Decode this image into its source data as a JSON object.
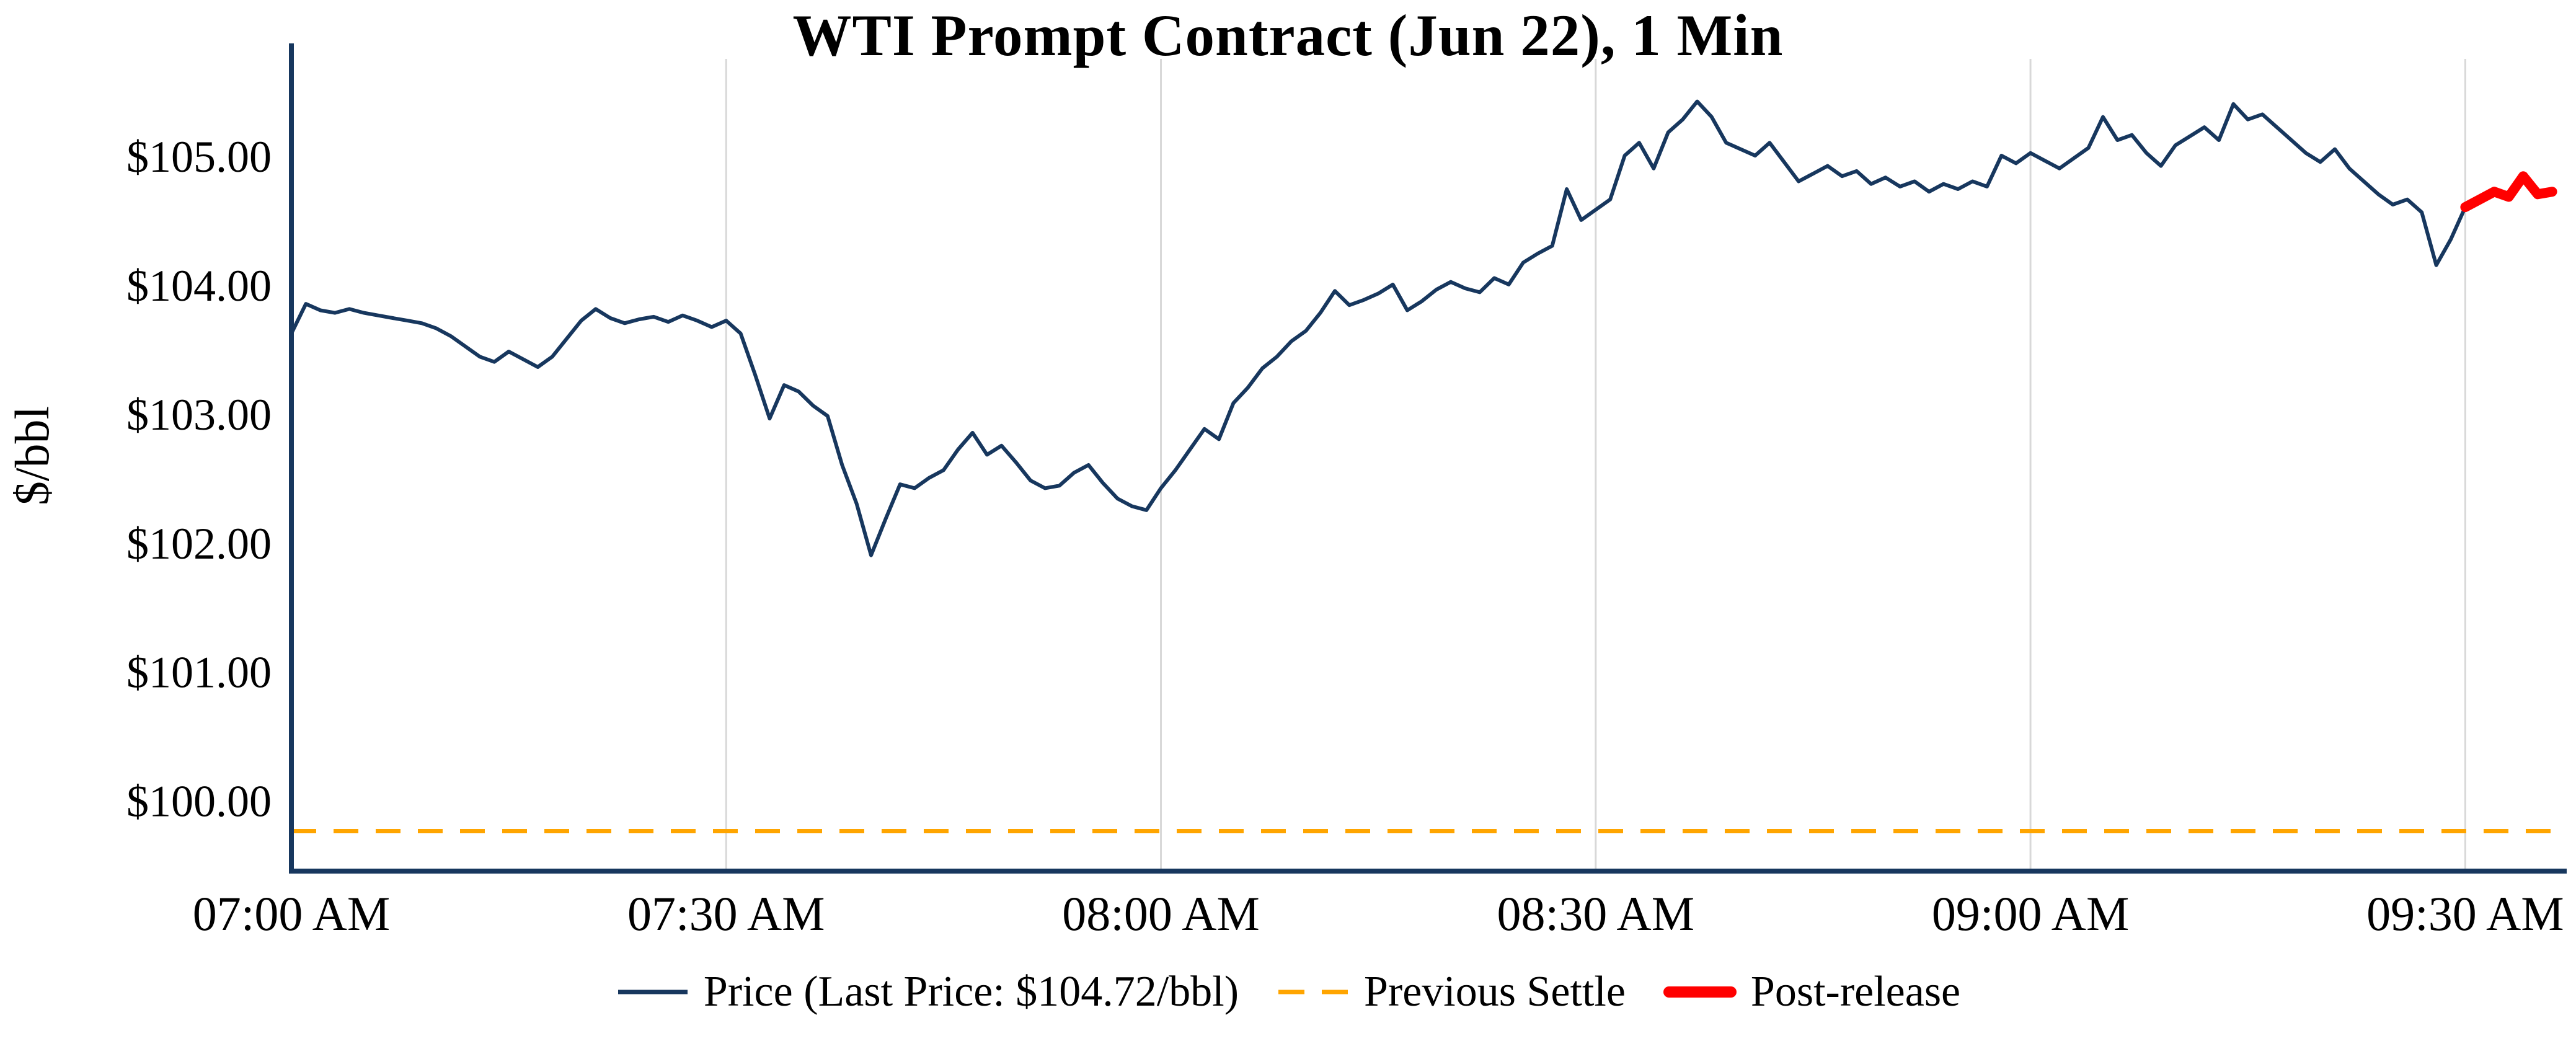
{
  "chart": {
    "title": "WTI Prompt Contract (Jun 22), 1 Min",
    "ylabel": "$/bbl",
    "legend": {
      "price": "Price (Last Price: $104.72/bbl)",
      "settle": "Previous Settle",
      "post": "Post-release"
    }
  },
  "chart_data": {
    "type": "line",
    "title": "WTI Prompt Contract (Jun 22), 1 Min",
    "xlabel": "",
    "ylabel": "$/bbl",
    "x_unit": "minutes since 07:00 AM",
    "xlim": [
      0,
      157
    ],
    "ylim": [
      99.45,
      105.75
    ],
    "grid": "vertical-only",
    "legend_position": "bottom",
    "previous_settle": 99.76,
    "last_price": 104.72,
    "colors": {
      "price": "#17375e",
      "settle": "#FFA500",
      "post": "#FF0000",
      "axis": "#17375e",
      "grid": "#d8d8d8"
    },
    "x_ticks": [
      {
        "minute": 0,
        "label": "07:00 AM"
      },
      {
        "minute": 30,
        "label": "07:30 AM"
      },
      {
        "minute": 60,
        "label": "08:00 AM"
      },
      {
        "minute": 90,
        "label": "08:30 AM"
      },
      {
        "minute": 120,
        "label": "09:00 AM"
      },
      {
        "minute": 150,
        "label": "09:30 AM"
      }
    ],
    "y_ticks": [
      {
        "value": 100,
        "label": "$100.00"
      },
      {
        "value": 101,
        "label": "$101.00"
      },
      {
        "value": 102,
        "label": "$102.00"
      },
      {
        "value": 103,
        "label": "$103.00"
      },
      {
        "value": 104,
        "label": "$104.00"
      },
      {
        "value": 105,
        "label": "$105.00"
      }
    ],
    "series": [
      {
        "name": "Price",
        "data_name": "price-line",
        "color": "#17375e",
        "width": 6,
        "x": [
          0,
          1,
          2,
          3,
          4,
          5,
          6,
          7,
          8,
          9,
          10,
          11,
          12,
          13,
          14,
          15,
          16,
          17,
          18,
          19,
          20,
          21,
          22,
          23,
          24,
          25,
          26,
          27,
          28,
          29,
          30,
          31,
          32,
          33,
          34,
          35,
          36,
          37,
          38,
          39,
          40,
          41,
          42,
          43,
          44,
          45,
          46,
          47,
          48,
          49,
          50,
          51,
          52,
          53,
          54,
          55,
          56,
          57,
          58,
          59,
          60,
          61,
          62,
          63,
          64,
          65,
          66,
          67,
          68,
          69,
          70,
          71,
          72,
          73,
          74,
          75,
          76,
          77,
          78,
          79,
          80,
          81,
          82,
          83,
          84,
          85,
          86,
          87,
          88,
          89,
          90,
          91,
          92,
          93,
          94,
          95,
          96,
          97,
          98,
          99,
          100,
          101,
          102,
          103,
          104,
          105,
          106,
          107,
          108,
          109,
          110,
          111,
          112,
          113,
          114,
          115,
          116,
          117,
          118,
          119,
          120,
          121,
          122,
          123,
          124,
          125,
          126,
          127,
          128,
          129,
          130,
          131,
          132,
          133,
          134,
          135,
          136,
          137,
          138,
          139,
          140,
          141,
          142,
          143,
          144,
          145,
          146,
          147,
          148,
          149,
          150
        ],
        "values": [
          103.62,
          103.85,
          103.8,
          103.78,
          103.81,
          103.78,
          103.76,
          103.74,
          103.72,
          103.7,
          103.66,
          103.6,
          103.52,
          103.44,
          103.4,
          103.48,
          103.42,
          103.36,
          103.44,
          103.58,
          103.72,
          103.81,
          103.74,
          103.7,
          103.73,
          103.75,
          103.71,
          103.76,
          103.72,
          103.67,
          103.72,
          103.62,
          103.3,
          102.96,
          103.22,
          103.17,
          103.06,
          102.98,
          102.6,
          102.3,
          101.9,
          102.18,
          102.45,
          102.42,
          102.5,
          102.56,
          102.72,
          102.85,
          102.68,
          102.75,
          102.62,
          102.48,
          102.42,
          102.44,
          102.54,
          102.6,
          102.46,
          102.34,
          102.28,
          102.25,
          102.42,
          102.56,
          102.72,
          102.88,
          102.8,
          103.08,
          103.2,
          103.35,
          103.44,
          103.56,
          103.64,
          103.78,
          103.95,
          103.84,
          103.88,
          103.93,
          104.0,
          103.8,
          103.87,
          103.96,
          104.02,
          103.97,
          103.94,
          104.05,
          104.0,
          104.17,
          104.24,
          104.3,
          104.74,
          104.5,
          104.58,
          104.66,
          105.0,
          105.1,
          104.9,
          105.18,
          105.28,
          105.42,
          105.3,
          105.1,
          105.05,
          105.0,
          105.1,
          104.95,
          104.8,
          104.86,
          104.92,
          104.84,
          104.88,
          104.78,
          104.83,
          104.76,
          104.8,
          104.72,
          104.78,
          104.74,
          104.8,
          104.76,
          105.0,
          104.94,
          105.02,
          104.96,
          104.9,
          104.98,
          105.06,
          105.3,
          105.12,
          105.16,
          105.02,
          104.92,
          105.08,
          105.15,
          105.22,
          105.12,
          105.4,
          105.28,
          105.32,
          105.22,
          105.12,
          105.02,
          104.95,
          105.05,
          104.9,
          104.8,
          104.7,
          104.62,
          104.66,
          104.56,
          104.15,
          104.35,
          104.6
        ]
      },
      {
        "name": "Post-release",
        "data_name": "post-release-line",
        "color": "#FF0000",
        "width": 16,
        "x": [
          150,
          151,
          152,
          153,
          154,
          155,
          156
        ],
        "values": [
          104.6,
          104.66,
          104.72,
          104.68,
          104.84,
          104.7,
          104.72
        ]
      }
    ]
  }
}
